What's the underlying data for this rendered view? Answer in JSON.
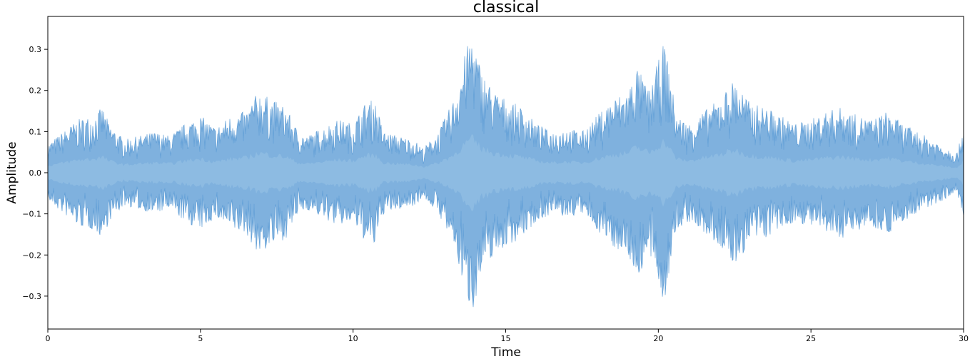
{
  "chart_data": {
    "type": "area",
    "title": "classical",
    "xlabel": "Time",
    "ylabel": "Amplitude",
    "xlim": [
      0,
      30
    ],
    "ylim": [
      -0.38,
      0.38
    ],
    "x_ticks": [
      0,
      5,
      10,
      15,
      20,
      25,
      30
    ],
    "x_tick_labels": [
      "0",
      "5",
      "10",
      "15",
      "20",
      "25",
      "30"
    ],
    "y_ticks": [
      0.3,
      0.2,
      0.1,
      0.0,
      -0.1,
      -0.2,
      -0.3
    ],
    "y_tick_labels": [
      "0.3",
      "0.2",
      "0.1",
      "0.0",
      "−0.1",
      "−0.2",
      "−0.3"
    ],
    "grid": false,
    "color": "#5b9bd5",
    "series": [
      {
        "x": [
          0,
          0.5,
          1,
          1.5,
          1.8,
          2,
          2.5,
          3,
          3.5,
          4,
          4.5,
          5,
          5.5,
          6,
          6.5,
          6.9,
          7.3,
          7.8,
          8.2,
          8.5,
          9,
          9.5,
          10,
          10.4,
          10.7,
          11,
          11.5,
          12,
          12.3,
          12.8,
          13.3,
          13.7,
          13.9,
          14.2,
          14.6,
          15,
          15.5,
          16,
          16.5,
          17,
          17.5,
          18,
          18.5,
          19,
          19.3,
          19.7,
          20.2,
          20.6,
          21,
          21.5,
          22,
          22.5,
          23,
          23.5,
          24,
          24.5,
          25,
          25.5,
          26,
          26.5,
          27,
          27.5,
          28,
          28.5,
          29,
          29.5,
          29.8,
          30
        ],
        "max": [
          0.07,
          0.1,
          0.13,
          0.14,
          0.16,
          0.12,
          0.08,
          0.09,
          0.1,
          0.09,
          0.12,
          0.14,
          0.11,
          0.14,
          0.15,
          0.2,
          0.18,
          0.16,
          0.1,
          0.09,
          0.11,
          0.13,
          0.12,
          0.17,
          0.18,
          0.1,
          0.09,
          0.08,
          0.06,
          0.1,
          0.18,
          0.3,
          0.34,
          0.25,
          0.2,
          0.18,
          0.16,
          0.12,
          0.1,
          0.11,
          0.1,
          0.14,
          0.18,
          0.2,
          0.26,
          0.2,
          0.32,
          0.14,
          0.12,
          0.15,
          0.18,
          0.23,
          0.17,
          0.16,
          0.14,
          0.12,
          0.13,
          0.15,
          0.16,
          0.14,
          0.13,
          0.15,
          0.12,
          0.1,
          0.08,
          0.06,
          0.05,
          0.12
        ],
        "min": [
          -0.07,
          -0.1,
          -0.13,
          -0.14,
          -0.16,
          -0.12,
          -0.08,
          -0.09,
          -0.1,
          -0.09,
          -0.12,
          -0.14,
          -0.11,
          -0.14,
          -0.15,
          -0.2,
          -0.18,
          -0.16,
          -0.1,
          -0.09,
          -0.11,
          -0.13,
          -0.12,
          -0.17,
          -0.18,
          -0.1,
          -0.09,
          -0.08,
          -0.06,
          -0.1,
          -0.18,
          -0.3,
          -0.34,
          -0.25,
          -0.2,
          -0.18,
          -0.16,
          -0.12,
          -0.1,
          -0.11,
          -0.1,
          -0.14,
          -0.18,
          -0.2,
          -0.26,
          -0.2,
          -0.32,
          -0.14,
          -0.12,
          -0.15,
          -0.18,
          -0.23,
          -0.17,
          -0.16,
          -0.14,
          -0.12,
          -0.13,
          -0.15,
          -0.16,
          -0.14,
          -0.13,
          -0.15,
          -0.12,
          -0.1,
          -0.08,
          -0.06,
          -0.05,
          -0.12
        ]
      }
    ]
  }
}
